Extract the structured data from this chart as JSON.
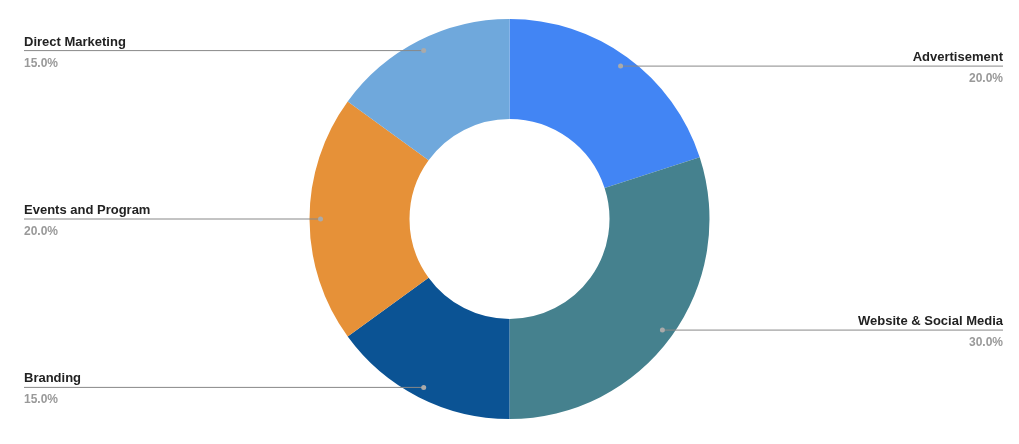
{
  "chart_data": {
    "type": "donut",
    "categories": [
      "Advertisement",
      "Website & Social Media",
      "Branding",
      "Events and Program",
      "Direct Marketing"
    ],
    "values": [
      20,
      30,
      15,
      20,
      15
    ],
    "colors": [
      "#4285f4",
      "#45818e",
      "#0b5394",
      "#e69138",
      "#6fa8dc"
    ],
    "value_labels": [
      "20.0%",
      "30.0%",
      "15.0%",
      "20.0%",
      "15.0%"
    ],
    "legend": false
  }
}
